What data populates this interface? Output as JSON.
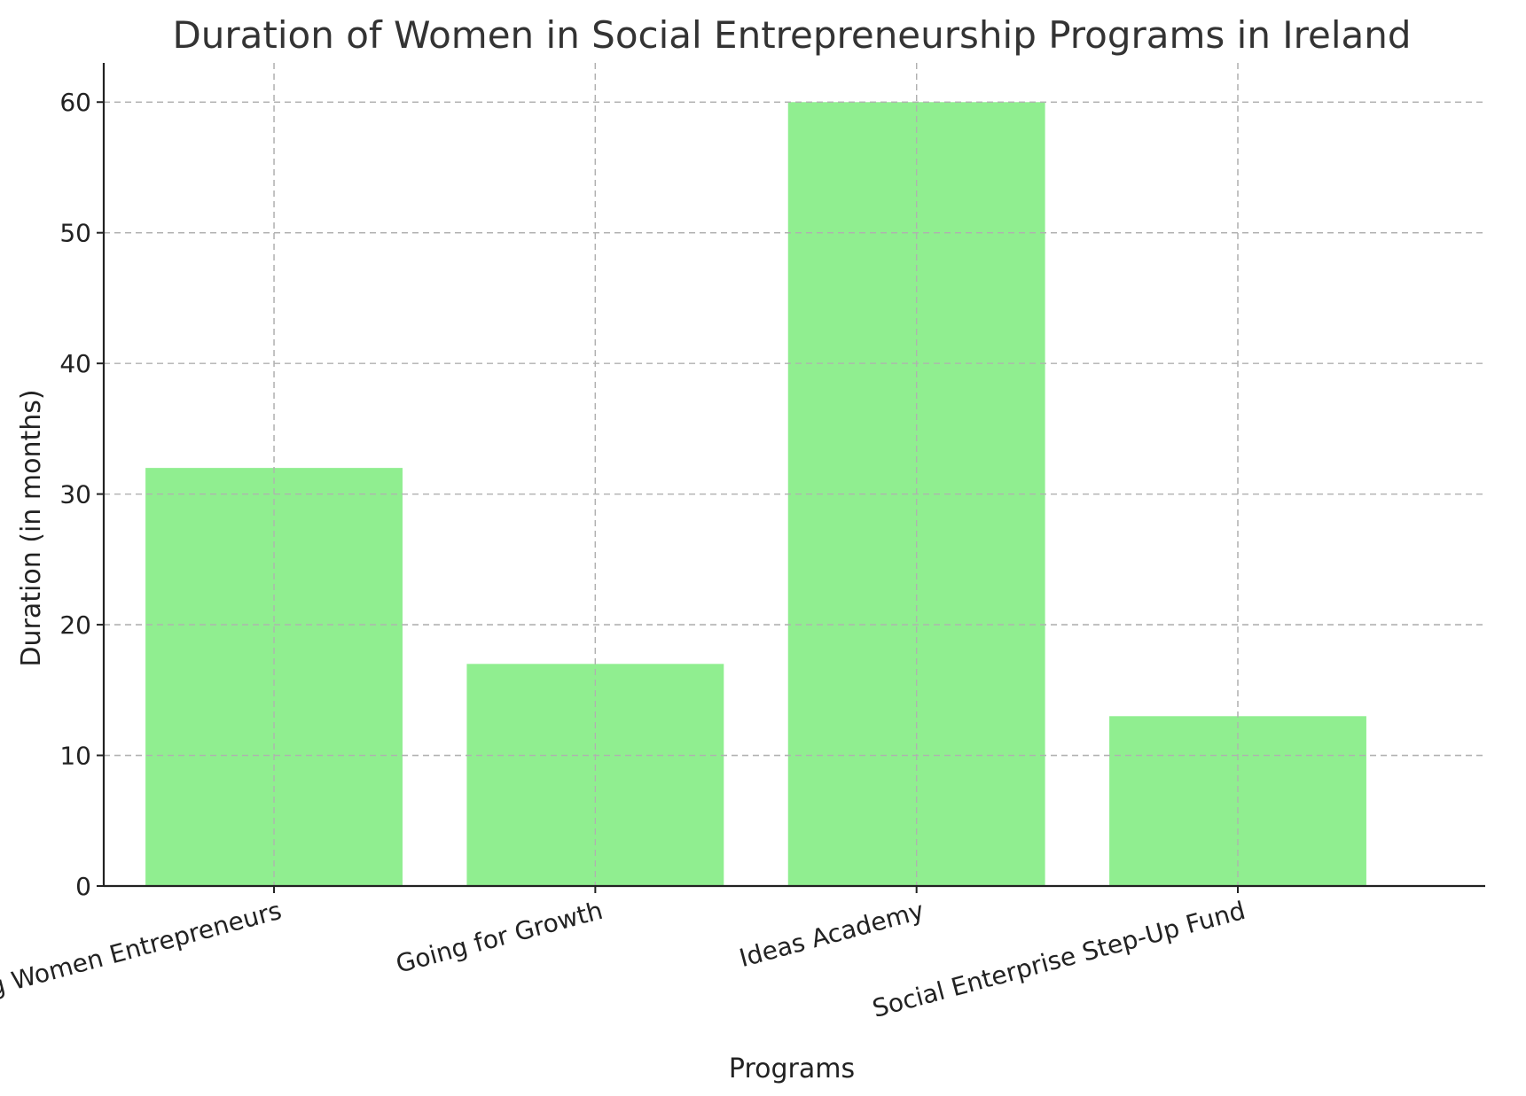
{
  "chart_data": {
    "type": "bar",
    "title": "Duration of Women in Social Entrepreneurship Programs in Ireland",
    "xlabel": "Programs",
    "ylabel": "Duration (in months)",
    "categories": [
      "Inspiring Women Entrepreneurs",
      "Going for Growth",
      "Ideas Academy",
      "Social Enterprise Step-Up Fund"
    ],
    "values": [
      32,
      17,
      60,
      13
    ],
    "ylim": [
      0,
      63
    ],
    "yticks": [
      0,
      10,
      20,
      30,
      40,
      50,
      60
    ],
    "grid": true,
    "bar_color": "#90ee90",
    "x_tick_rotation": "15 degrees"
  }
}
